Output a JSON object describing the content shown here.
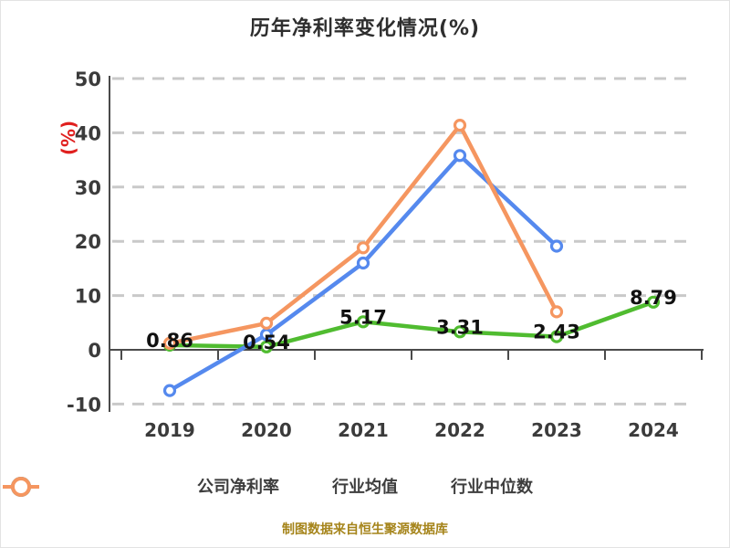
{
  "title": "历年净利率变化情况(%)",
  "caption": "制图数据来自恒生聚源数据库",
  "colors": {
    "company": "#50bc30",
    "industry_mean": "#5589ee",
    "industry_median": "#f59660",
    "ylabel_red": "#e0201f",
    "caption_gold": "#a5841a",
    "grid": "#c9c9c9",
    "axis": "#4a4a4a",
    "tick_text": "#3b3b3b",
    "value_label": "#111111"
  },
  "chart_data": {
    "type": "line",
    "title": "历年净利率变化情况(%)",
    "xlabel": "",
    "ylabel": "(%)",
    "categories": [
      "2019",
      "2020",
      "2021",
      "2022",
      "2023",
      "2024"
    ],
    "ylim": [
      -10,
      50
    ],
    "yticks": [
      50,
      40,
      30,
      20,
      10,
      0,
      -10
    ],
    "grid": "horizontal-dashed, zero-line solid",
    "legend_position": "bottom",
    "series": [
      {
        "key": "company-net-margin",
        "name": "公司净利率",
        "color": "#50bc30",
        "values": [
          0.86,
          0.54,
          5.17,
          3.31,
          2.43,
          8.79
        ],
        "point_labels": [
          "0.86",
          "0.54",
          "5.17",
          "3.31",
          "2.43",
          "8.79"
        ]
      },
      {
        "key": "industry-mean",
        "name": "行业均值",
        "color": "#5589ee",
        "values": [
          -7.5,
          2.8,
          16.0,
          35.8,
          19.1,
          null
        ],
        "point_labels": null
      },
      {
        "key": "industry-median",
        "name": "行业中位数",
        "color": "#f59660",
        "values": [
          1.2,
          4.9,
          18.8,
          41.4,
          7.0,
          null
        ],
        "point_labels": null
      }
    ]
  }
}
